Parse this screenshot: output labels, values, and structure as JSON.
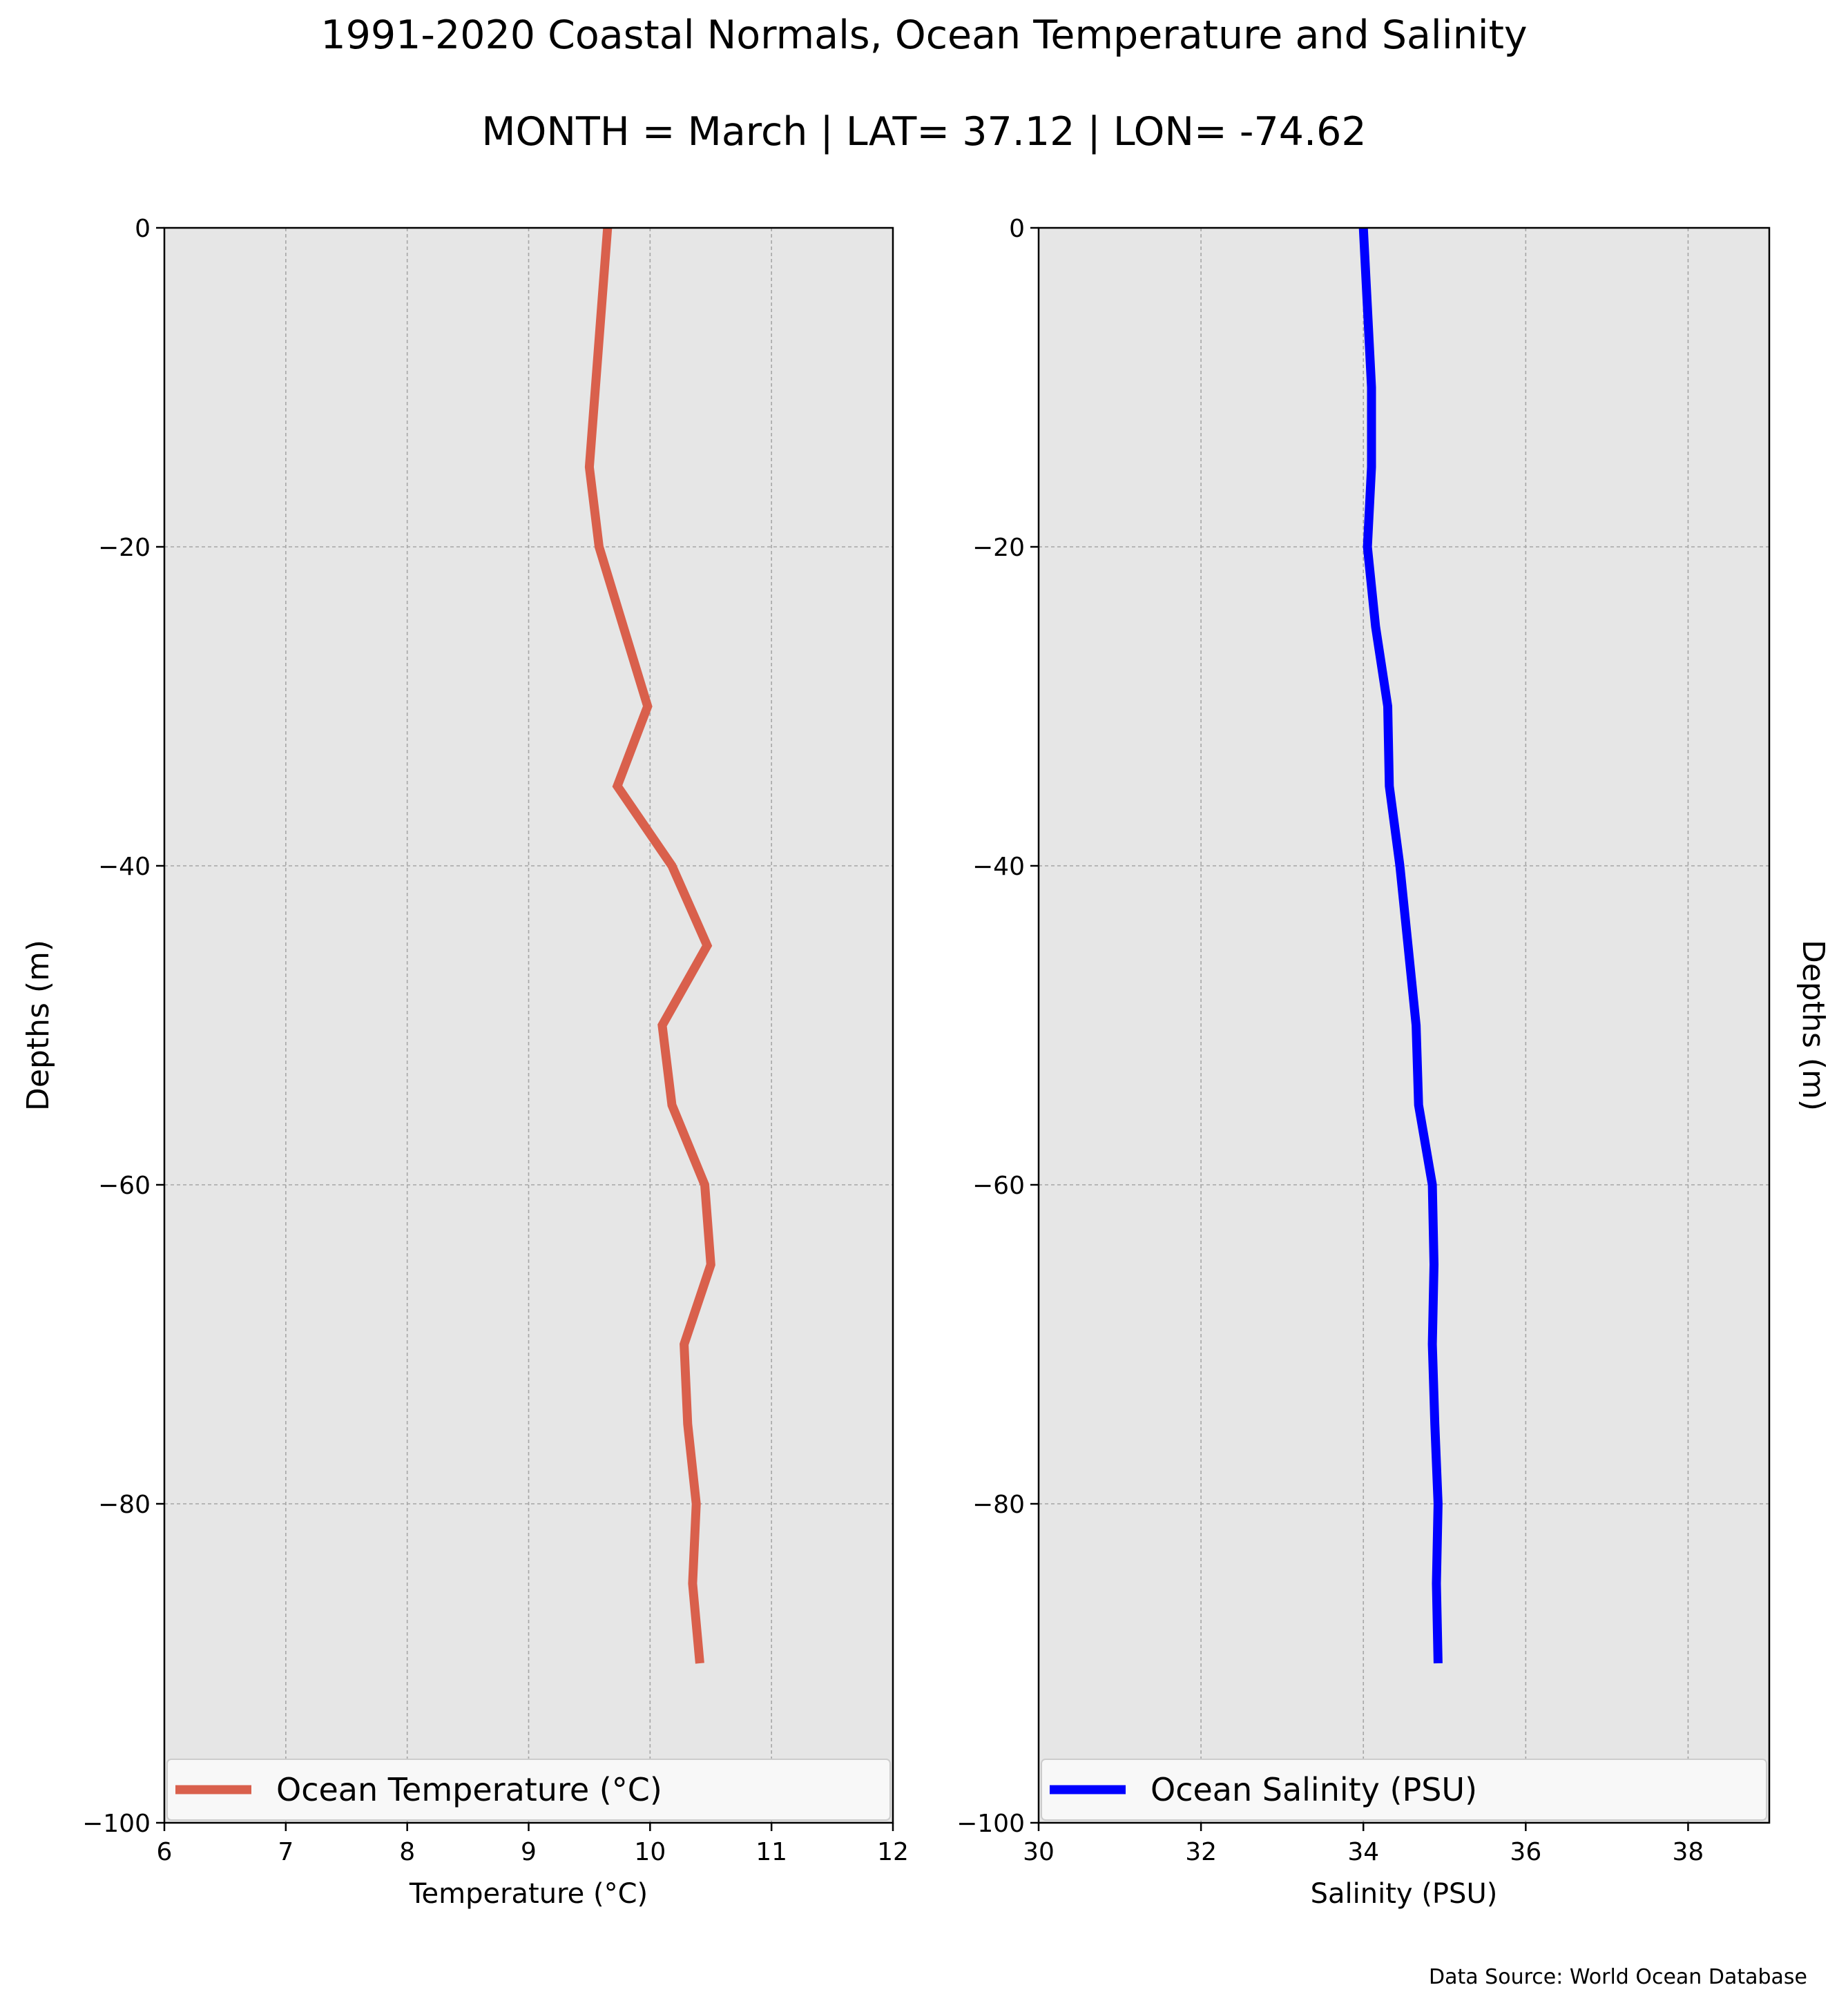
{
  "title": "1991-2020 Coastal Normals, Ocean Temperature and Salinity",
  "subtitle": "MONTH = March | LAT= 37.12 | LON= -74.62",
  "source_note": "Data Source: World Ocean Database",
  "colors": {
    "temperature": "#d9604c",
    "salinity": "#0000ff",
    "panel_bg": "#e6e6e6",
    "grid": "#a6a6a6"
  },
  "chart_data": [
    {
      "type": "line",
      "xlabel": "Temperature ($^\\circ$C)",
      "ylabel": "Depths (m)",
      "xlim": [
        6,
        12
      ],
      "ylim": [
        -100,
        0
      ],
      "xticks": [
        6,
        7,
        8,
        9,
        10,
        11,
        12
      ],
      "xtick_labels": [
        "6",
        "7",
        "8",
        "9",
        "10",
        "11",
        "12"
      ],
      "yticks": [
        0,
        -20,
        -40,
        -60,
        -80,
        -100
      ],
      "ytick_labels": [
        "0",
        "−20",
        "−40",
        "−60",
        "−80",
        "−100"
      ],
      "grid": true,
      "legend_position": "lower",
      "series": [
        {
          "name": "Ocean Temperature ($^\\circ$C)",
          "x": [
            9.65,
            9.6,
            9.55,
            9.5,
            9.58,
            9.78,
            9.98,
            9.73,
            10.18,
            10.47,
            10.1,
            10.18,
            10.45,
            10.5,
            10.28,
            10.31,
            10.38,
            10.35,
            10.41
          ],
          "y": [
            0,
            -5,
            -10,
            -15,
            -20,
            -25,
            -30,
            -35,
            -40,
            -45,
            -50,
            -55,
            -60,
            -65,
            -70,
            -75,
            -80,
            -85,
            -90
          ]
        }
      ]
    },
    {
      "type": "line",
      "xlabel": "Salinity (PSU)",
      "ylabel": "Depths (m)",
      "xlim": [
        30,
        39
      ],
      "ylim": [
        -100,
        0
      ],
      "xticks": [
        30,
        32,
        34,
        36,
        38
      ],
      "xtick_labels": [
        "30",
        "32",
        "34",
        "36",
        "38"
      ],
      "yticks": [
        0,
        -20,
        -40,
        -60,
        -80,
        -100
      ],
      "ytick_labels": [
        "0",
        "−20",
        "−40",
        "−60",
        "−80",
        "−100"
      ],
      "grid": true,
      "legend_position": "lower",
      "series": [
        {
          "name": "Ocean Salinity (PSU)",
          "x": [
            34.0,
            34.05,
            34.1,
            34.1,
            34.05,
            34.15,
            34.3,
            34.32,
            34.45,
            34.55,
            34.65,
            34.68,
            34.85,
            34.87,
            34.85,
            34.88,
            34.92,
            34.9,
            34.92
          ],
          "y": [
            0,
            -5,
            -10,
            -15,
            -20,
            -25,
            -30,
            -35,
            -40,
            -45,
            -50,
            -55,
            -60,
            -65,
            -70,
            -75,
            -80,
            -85,
            -90
          ]
        }
      ]
    }
  ]
}
